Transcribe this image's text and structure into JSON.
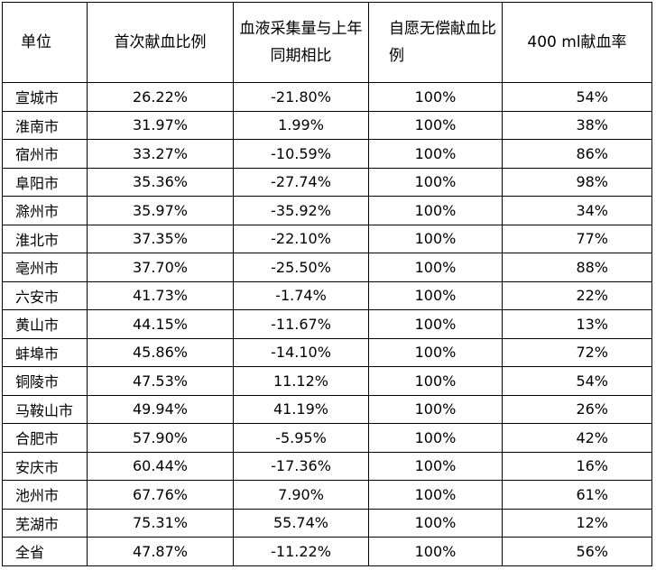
{
  "table": {
    "headers": [
      "单位",
      "首次献血比例",
      "血液采集量与上年同期相比",
      "自愿无偿献血比例",
      "400 ml献血率"
    ],
    "rows": [
      {
        "unit": "宣城市",
        "first_ratio": "26.22%",
        "yoy": "-21.80%",
        "voluntary": "100%",
        "rate400": "54%"
      },
      {
        "unit": "淮南市",
        "first_ratio": "31.97%",
        "yoy": "1.99%",
        "voluntary": "100%",
        "rate400": "38%"
      },
      {
        "unit": "宿州市",
        "first_ratio": "33.27%",
        "yoy": "-10.59%",
        "voluntary": "100%",
        "rate400": "86%"
      },
      {
        "unit": "阜阳市",
        "first_ratio": "35.36%",
        "yoy": "-27.74%",
        "voluntary": "100%",
        "rate400": "98%"
      },
      {
        "unit": "滁州市",
        "first_ratio": "35.97%",
        "yoy": "-35.92%",
        "voluntary": "100%",
        "rate400": "34%"
      },
      {
        "unit": "淮北市",
        "first_ratio": "37.35%",
        "yoy": "-22.10%",
        "voluntary": "100%",
        "rate400": "77%"
      },
      {
        "unit": "亳州市",
        "first_ratio": "37.70%",
        "yoy": "-25.50%",
        "voluntary": "100%",
        "rate400": "88%"
      },
      {
        "unit": "六安市",
        "first_ratio": "41.73%",
        "yoy": "-1.74%",
        "voluntary": "100%",
        "rate400": "22%"
      },
      {
        "unit": "黄山市",
        "first_ratio": "44.15%",
        "yoy": "-11.67%",
        "voluntary": "100%",
        "rate400": "13%"
      },
      {
        "unit": "蚌埠市",
        "first_ratio": "45.86%",
        "yoy": "-14.10%",
        "voluntary": "100%",
        "rate400": "72%"
      },
      {
        "unit": "铜陵市",
        "first_ratio": "47.53%",
        "yoy": "11.12%",
        "voluntary": "100%",
        "rate400": "54%"
      },
      {
        "unit": "马鞍山市",
        "first_ratio": "49.94%",
        "yoy": "41.19%",
        "voluntary": "100%",
        "rate400": "26%"
      },
      {
        "unit": "合肥市",
        "first_ratio": "57.90%",
        "yoy": "-5.95%",
        "voluntary": "100%",
        "rate400": "42%"
      },
      {
        "unit": "安庆市",
        "first_ratio": "60.44%",
        "yoy": "-17.36%",
        "voluntary": "100%",
        "rate400": "16%"
      },
      {
        "unit": "池州市",
        "first_ratio": "67.76%",
        "yoy": "7.90%",
        "voluntary": "100%",
        "rate400": "61%"
      },
      {
        "unit": "芜湖市",
        "first_ratio": "75.31%",
        "yoy": "55.74%",
        "voluntary": "100%",
        "rate400": "12%"
      },
      {
        "unit": "全省",
        "first_ratio": "47.87%",
        "yoy": "-11.22%",
        "voluntary": "100%",
        "rate400": "56%"
      }
    ]
  }
}
